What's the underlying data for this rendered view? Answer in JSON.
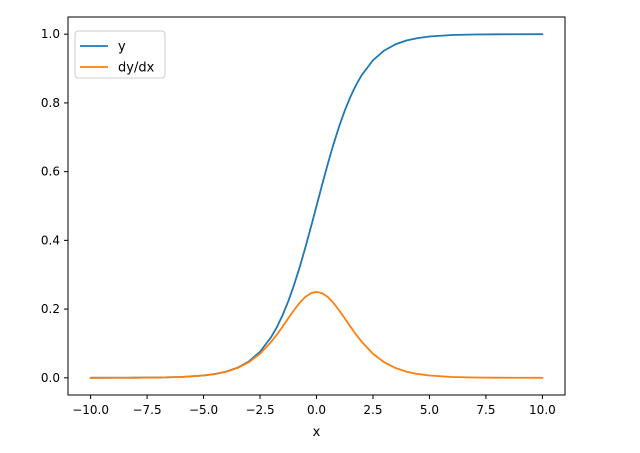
{
  "chart_data": {
    "type": "line",
    "title": "",
    "xlabel": "x",
    "ylabel": "",
    "xlim": [
      -11.0,
      11.0
    ],
    "ylim": [
      -0.05,
      1.05
    ],
    "xticks": [
      -10.0,
      -7.5,
      -5.0,
      -2.5,
      0.0,
      2.5,
      5.0,
      7.5,
      10.0
    ],
    "xtick_labels": [
      "−10.0",
      "−7.5",
      "−5.0",
      "−2.5",
      "0.0",
      "2.5",
      "5.0",
      "7.5",
      "10.0"
    ],
    "yticks": [
      0.0,
      0.2,
      0.4,
      0.6,
      0.8,
      1.0
    ],
    "ytick_labels": [
      "0.0",
      "0.2",
      "0.4",
      "0.6",
      "0.8",
      "1.0"
    ],
    "grid": false,
    "legend_position": "top-left",
    "x": [
      -10,
      -9,
      -8,
      -7,
      -6,
      -5,
      -4.5,
      -4,
      -3.5,
      -3,
      -2.5,
      -2,
      -1.75,
      -1.5,
      -1.25,
      -1,
      -0.75,
      -0.5,
      -0.25,
      0,
      0.25,
      0.5,
      0.75,
      1,
      1.25,
      1.5,
      1.75,
      2,
      2.5,
      3,
      3.5,
      4,
      4.5,
      5,
      6,
      7,
      8,
      9,
      10
    ],
    "series": [
      {
        "name": "y",
        "color": "#1f77b4",
        "values": [
          5e-05,
          0.00012,
          0.00034,
          0.00091,
          0.00247,
          0.00669,
          0.01099,
          0.01799,
          0.02931,
          0.04743,
          0.07586,
          0.1192,
          0.14805,
          0.18243,
          0.2227,
          0.26894,
          0.32082,
          0.37754,
          0.43782,
          0.5,
          0.56218,
          0.62246,
          0.67918,
          0.73106,
          0.7773,
          0.81757,
          0.85195,
          0.8808,
          0.92414,
          0.95257,
          0.97069,
          0.98201,
          0.98901,
          0.99331,
          0.99753,
          0.99909,
          0.99966,
          0.99988,
          0.99995
        ]
      },
      {
        "name": "dy/dx",
        "color": "#ff7f0e",
        "values": [
          5e-05,
          0.00012,
          0.00034,
          0.00091,
          0.00247,
          0.00665,
          0.01087,
          0.01767,
          0.02845,
          0.04518,
          0.0701,
          0.10499,
          0.12613,
          0.14915,
          0.1731,
          0.19661,
          0.21789,
          0.235,
          0.24613,
          0.25,
          0.24613,
          0.235,
          0.21789,
          0.19661,
          0.1731,
          0.14915,
          0.12613,
          0.10499,
          0.0701,
          0.04518,
          0.02845,
          0.01767,
          0.01087,
          0.00665,
          0.00247,
          0.00091,
          0.00034,
          0.00012,
          5e-05
        ]
      }
    ]
  }
}
